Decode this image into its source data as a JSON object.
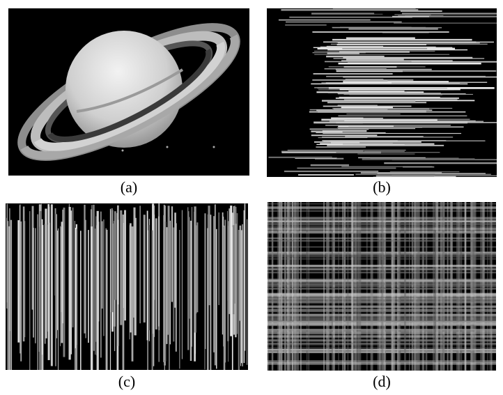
{
  "panels": [
    {
      "caption": "(a)"
    },
    {
      "caption": "(b)"
    },
    {
      "caption": "(c)"
    },
    {
      "caption": "(d)"
    }
  ]
}
